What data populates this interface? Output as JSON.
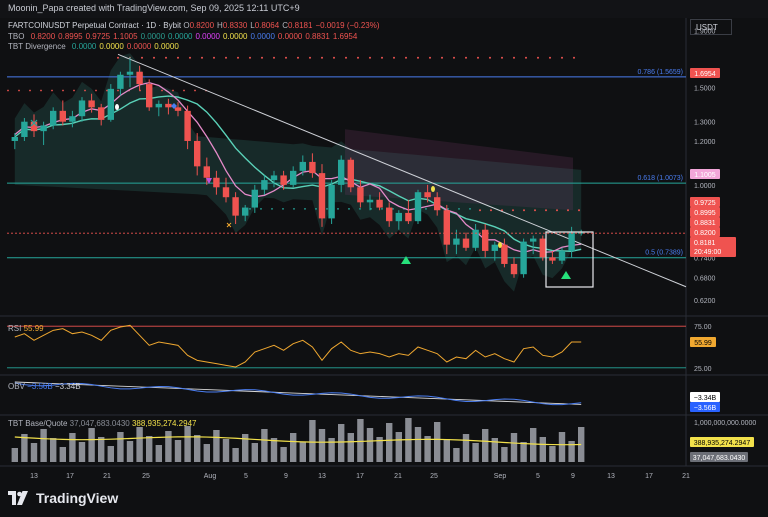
{
  "header": {
    "credit": "Moonin_Papa created with TradingView.com, Sep 09, 2025 12:11 UTC+9"
  },
  "legend": {
    "symbol": "FARTCOINUSDT Perpetual Contract · 1D · Bybit",
    "ohlc": [
      {
        "k": "O",
        "v": "0.8200"
      },
      {
        "k": "H",
        "v": "0.8330"
      },
      {
        "k": "L",
        "v": "0.8064"
      },
      {
        "k": "C",
        "v": "0.8181"
      },
      {
        "k": "",
        "v": "−0.0019 (−0.23%)"
      }
    ],
    "tbo_label": "TBO",
    "tbo_values": [
      "0.8200",
      "0.8995",
      "0.9725",
      "1.1005",
      "0.0000",
      "0.0000",
      "0.0000",
      "0.0000",
      "0.0000",
      "0.0000",
      "0.8831",
      "1.6954"
    ],
    "tbod_label": "TBT Divergence",
    "tbod_values": [
      "0.0000",
      "0.0000",
      "0.0000",
      "0.0000"
    ]
  },
  "currency": "USDT",
  "colors": {
    "up": "#26a69a",
    "down": "#ef5350",
    "bg": "#0f1012",
    "pink": "#e58ac9",
    "yellow": "#f2e14b"
  },
  "price_axis": {
    "ticks": [
      "1.9000",
      "1.5000",
      "1.3000",
      "1.2000",
      "1.0000",
      "0.7400",
      "0.6800",
      "0.6200"
    ]
  },
  "fib_labels": {
    "f786": "0.786 (1.5659)",
    "f618": "0.618 (1.0073)",
    "f50": "0.5 (0.7389)"
  },
  "price_tags": [
    {
      "text": "1.6954",
      "bg": "#ef5350"
    },
    {
      "text": "1.1005",
      "bg": "#f2a6d9"
    },
    {
      "text": "0.9725",
      "bg": "#ef5350"
    },
    {
      "text": "0.8995",
      "bg": "#ef5350"
    },
    {
      "text": "0.8831",
      "bg": "#ef5350"
    },
    {
      "text": "0.8200",
      "bg": "#ef5350"
    }
  ],
  "last_price": {
    "price": "0.8181",
    "countdown": "20:49:00"
  },
  "rsi": {
    "label": "RSI",
    "value": "55.99",
    "ticks": [
      "75.00",
      "25.00"
    ]
  },
  "obv": {
    "label": "OBV",
    "v1": "−3.56B",
    "v2": "−3.34B",
    "tag1": "−3.34B",
    "tag2": "−3.56B"
  },
  "tbt": {
    "label": "TBT Base/Quote",
    "v1": "37,047,683.0430",
    "v2": "388,935,274.2947",
    "tick": "1,000,000,000.0000",
    "tag_yellow": "388,935,274.2947",
    "tag_gray": "37,047,683.0430"
  },
  "time_axis": [
    "13",
    "17",
    "21",
    "25",
    "Aug",
    "5",
    "9",
    "13",
    "17",
    "21",
    "25",
    "Sep",
    "5",
    "9",
    "13",
    "17",
    "21"
  ],
  "brand": "TradingView",
  "chart_data": {
    "type": "candlestick",
    "title": "FARTCOINUSDT Perpetual Contract · 1D · Bybit",
    "ohlc": [
      [
        1.2,
        1.24,
        1.16,
        1.22
      ],
      [
        1.22,
        1.32,
        1.2,
        1.3
      ],
      [
        1.3,
        1.34,
        1.22,
        1.25
      ],
      [
        1.25,
        1.3,
        1.18,
        1.28
      ],
      [
        1.28,
        1.38,
        1.26,
        1.36
      ],
      [
        1.36,
        1.42,
        1.28,
        1.3
      ],
      [
        1.3,
        1.36,
        1.27,
        1.33
      ],
      [
        1.33,
        1.44,
        1.3,
        1.42
      ],
      [
        1.42,
        1.46,
        1.35,
        1.38
      ],
      [
        1.38,
        1.4,
        1.28,
        1.31
      ],
      [
        1.31,
        1.52,
        1.3,
        1.49
      ],
      [
        1.49,
        1.6,
        1.45,
        1.58
      ],
      [
        1.58,
        1.7,
        1.5,
        1.6
      ],
      [
        1.6,
        1.64,
        1.48,
        1.52
      ],
      [
        1.52,
        1.55,
        1.36,
        1.38
      ],
      [
        1.38,
        1.42,
        1.33,
        1.4
      ],
      [
        1.4,
        1.43,
        1.34,
        1.38
      ],
      [
        1.38,
        1.41,
        1.33,
        1.36
      ],
      [
        1.36,
        1.39,
        1.16,
        1.2
      ],
      [
        1.2,
        1.24,
        1.04,
        1.08
      ],
      [
        1.08,
        1.12,
        1.0,
        1.03
      ],
      [
        1.03,
        1.06,
        0.96,
        0.99
      ],
      [
        0.99,
        1.03,
        0.93,
        0.95
      ],
      [
        0.95,
        0.97,
        0.85,
        0.88
      ],
      [
        0.88,
        0.92,
        0.86,
        0.91
      ],
      [
        0.91,
        1.0,
        0.89,
        0.98
      ],
      [
        0.98,
        1.04,
        0.96,
        1.02
      ],
      [
        1.02,
        1.06,
        0.99,
        1.04
      ],
      [
        1.04,
        1.06,
        0.98,
        1.0
      ],
      [
        1.0,
        1.08,
        0.99,
        1.06
      ],
      [
        1.06,
        1.13,
        1.04,
        1.1
      ],
      [
        1.1,
        1.14,
        1.03,
        1.05
      ],
      [
        1.05,
        1.09,
        0.84,
        0.87
      ],
      [
        0.87,
        1.02,
        0.85,
        1.0
      ],
      [
        1.0,
        1.13,
        0.97,
        1.11
      ],
      [
        1.11,
        1.12,
        0.97,
        0.99
      ],
      [
        0.99,
        1.02,
        0.91,
        0.93
      ],
      [
        0.93,
        0.96,
        0.9,
        0.94
      ],
      [
        0.94,
        0.97,
        0.9,
        0.91
      ],
      [
        0.91,
        0.93,
        0.84,
        0.86
      ],
      [
        0.86,
        0.9,
        0.83,
        0.89
      ],
      [
        0.89,
        0.94,
        0.85,
        0.86
      ],
      [
        0.86,
        0.98,
        0.85,
        0.97
      ],
      [
        0.97,
        1.0,
        0.93,
        0.95
      ],
      [
        0.95,
        0.97,
        0.88,
        0.9
      ],
      [
        0.9,
        0.92,
        0.75,
        0.78
      ],
      [
        0.78,
        0.83,
        0.75,
        0.8
      ],
      [
        0.8,
        0.82,
        0.76,
        0.77
      ],
      [
        0.77,
        0.85,
        0.76,
        0.83
      ],
      [
        0.83,
        0.85,
        0.74,
        0.76
      ],
      [
        0.76,
        0.79,
        0.73,
        0.78
      ],
      [
        0.78,
        0.8,
        0.71,
        0.72
      ],
      [
        0.72,
        0.74,
        0.68,
        0.69
      ],
      [
        0.69,
        0.8,
        0.68,
        0.79
      ],
      [
        0.79,
        0.81,
        0.75,
        0.8
      ],
      [
        0.8,
        0.81,
        0.73,
        0.74
      ],
      [
        0.74,
        0.76,
        0.72,
        0.73
      ],
      [
        0.73,
        0.77,
        0.72,
        0.76
      ],
      [
        0.76,
        0.84,
        0.74,
        0.82
      ],
      [
        0.82,
        0.83,
        0.81,
        0.82
      ]
    ],
    "log_scale": true,
    "ylim": [
      0.58,
      2.0
    ],
    "fibonacci": [
      {
        "level": "0.786",
        "price": 1.5659
      },
      {
        "level": "0.618",
        "price": 1.0073
      },
      {
        "level": "0.5",
        "price": 0.7389
      }
    ],
    "resistance_dots": 1.6954,
    "support_dots": [
      0.8831,
      0.8995
    ],
    "rsi": {
      "last": 55.99,
      "series": [
        62,
        66,
        58,
        64,
        70,
        72,
        66,
        68,
        64,
        58,
        70,
        74,
        76,
        64,
        52,
        56,
        54,
        52,
        40,
        34,
        32,
        30,
        28,
        26,
        32,
        44,
        48,
        52,
        46,
        54,
        58,
        50,
        34,
        48,
        56,
        46,
        42,
        44,
        42,
        38,
        42,
        40,
        50,
        46,
        42,
        32,
        38,
        36,
        46,
        38,
        42,
        36,
        32,
        48,
        50,
        40,
        38,
        44,
        56,
        55.99
      ]
    }
  }
}
